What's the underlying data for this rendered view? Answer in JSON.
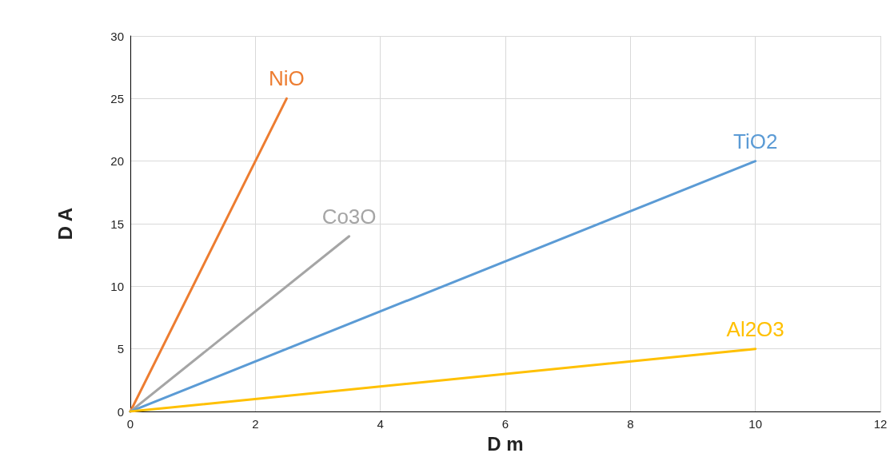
{
  "chart_data": {
    "type": "line",
    "xlabel": "D m",
    "ylabel": "D A",
    "xlim": [
      0,
      12
    ],
    "xticks": [
      0,
      2,
      4,
      6,
      8,
      10,
      12
    ],
    "ylim": [
      0,
      30
    ],
    "yticks": [
      0,
      5,
      10,
      15,
      20,
      25,
      30
    ],
    "grid": true,
    "marker": "none",
    "line_style": "solid",
    "series": [
      {
        "name": "NiO",
        "color": "#ed7d31",
        "x": [
          0,
          2.5
        ],
        "values": [
          0,
          25
        ]
      },
      {
        "name": "Co3O",
        "color": "#a5a5a5",
        "x": [
          0,
          3.5
        ],
        "values": [
          0,
          14
        ]
      },
      {
        "name": "TiO2",
        "color": "#5b9bd5",
        "x": [
          0,
          10
        ],
        "values": [
          0,
          20
        ]
      },
      {
        "name": "Al2O3",
        "color": "#ffc000",
        "x": [
          0,
          10
        ],
        "values": [
          0,
          5
        ]
      }
    ]
  }
}
